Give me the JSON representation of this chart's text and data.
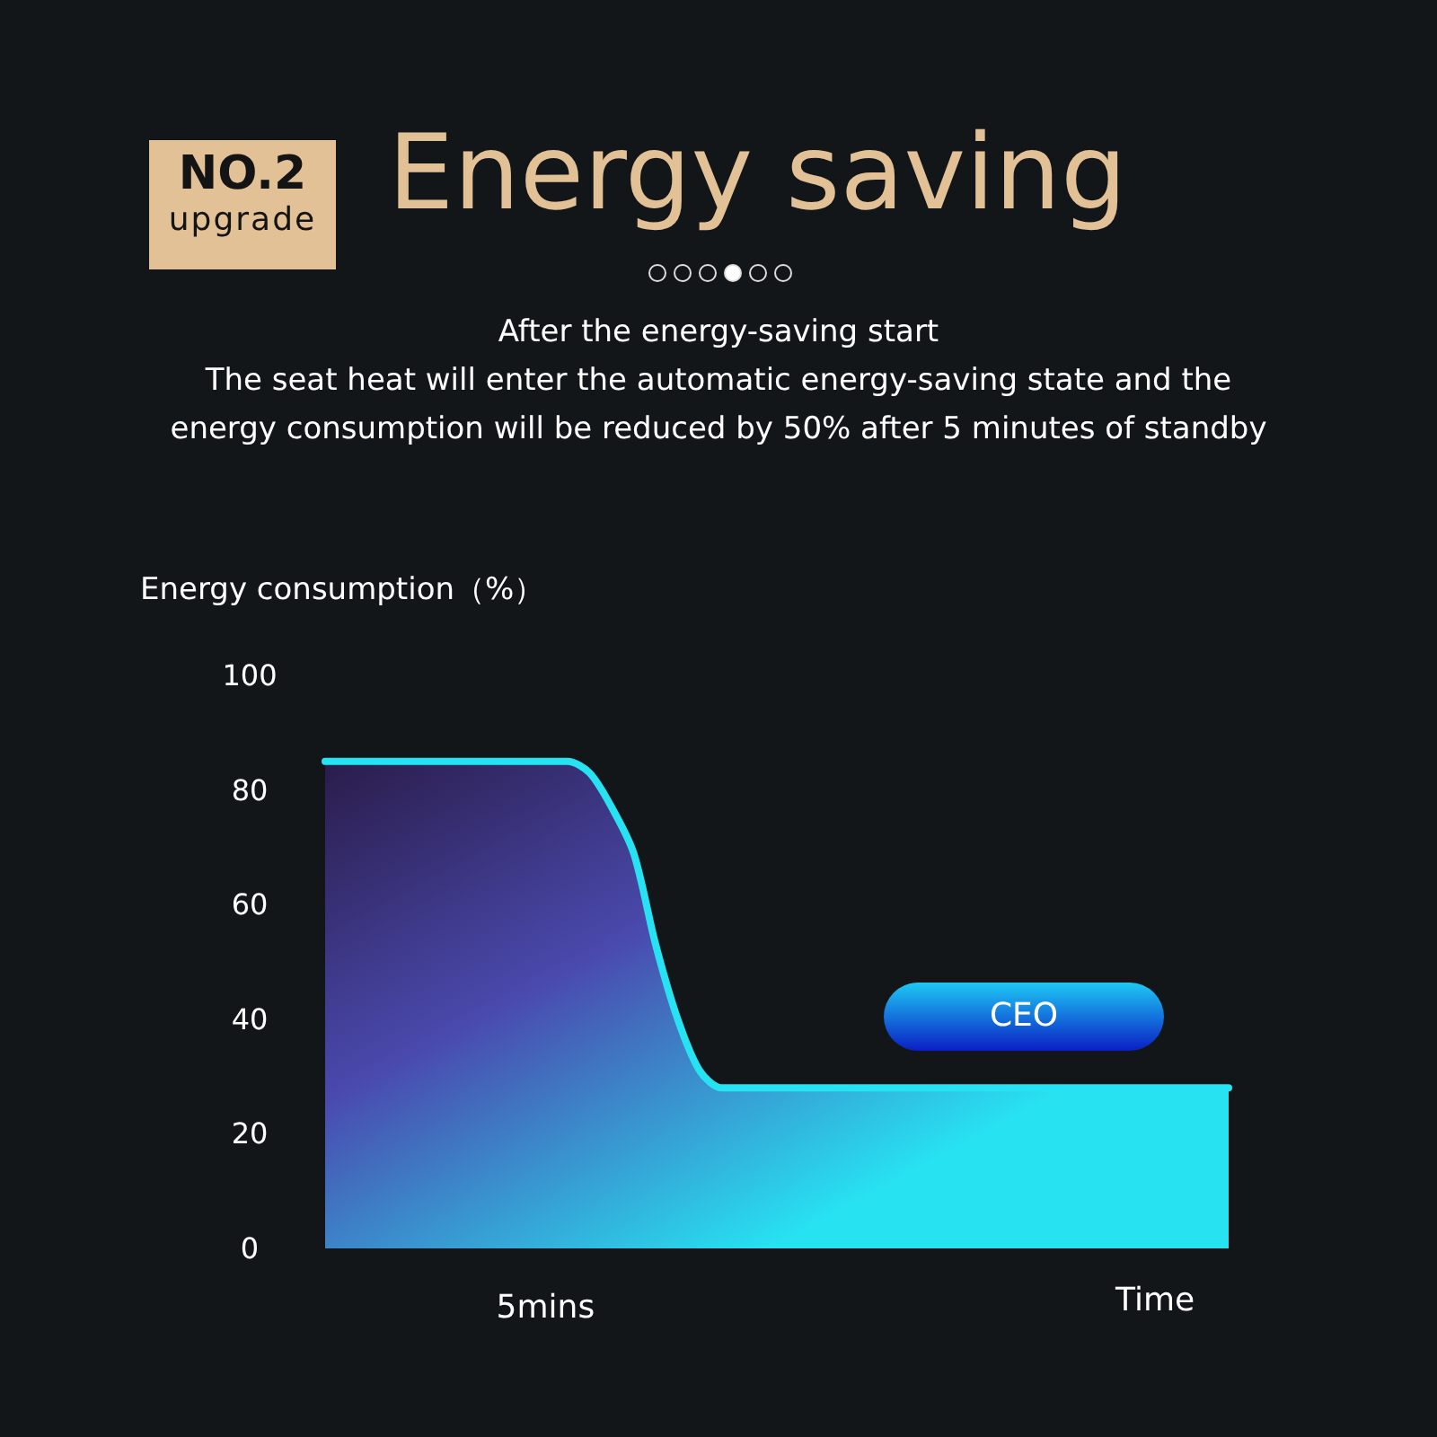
{
  "chart_data": {
    "type": "area",
    "title": "Energy saving",
    "subtitle": "After the energy-saving start\nThe seat heat will enter the automatic energy-saving state and the\nenergy consumption will be reduced by 50% after 5 minutes of standby",
    "annotations": [
      "NO.2",
      "upgrade",
      "CEO"
    ],
    "ylabel": "Energy consumption（%）",
    "xlabel": "Time",
    "categories": [
      null,
      null,
      null,
      null,
      null,
      null,
      null,
      null,
      null,
      null,
      "5mins",
      null,
      null,
      null,
      null,
      null,
      null,
      null,
      null,
      null,
      null,
      null,
      null,
      null,
      null,
      null,
      null,
      null,
      null,
      null,
      null,
      null,
      null,
      null,
      null,
      null,
      null,
      null,
      null,
      null,
      null,
      null
    ],
    "series": [
      {
        "color": "#27e3f2",
        "values": [
          85,
          85,
          85,
          85,
          85,
          85,
          85,
          85,
          85,
          85,
          85,
          85,
          83,
          77,
          69,
          53,
          40,
          31,
          28,
          28,
          28,
          28,
          28,
          28,
          28,
          28,
          28,
          28,
          28,
          28,
          28,
          28,
          28,
          28,
          28,
          28,
          28,
          28,
          28,
          28,
          28,
          28
        ]
      }
    ],
    "ylim": [
      0,
      100
    ],
    "yticks": [
      0,
      20,
      40,
      60,
      80,
      100
    ],
    "grid": false,
    "marker": "none",
    "line_style": "solid"
  }
}
